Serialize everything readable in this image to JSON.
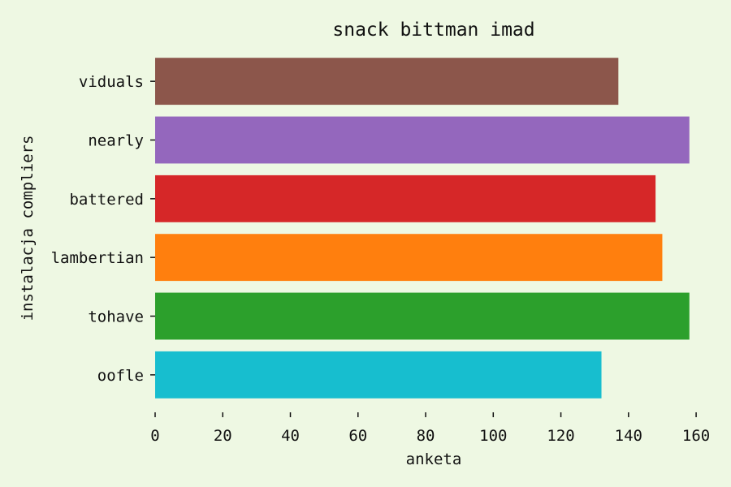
{
  "chart_data": {
    "type": "bar",
    "orientation": "horizontal",
    "title": "snack bittman imad",
    "xlabel": "anketa",
    "ylabel": "instalacja compliers",
    "categories": [
      "oofle",
      "tohave",
      "lambertian",
      "battered",
      "nearly",
      "viduals"
    ],
    "values": [
      132,
      158,
      150,
      148,
      158,
      137
    ],
    "colors": [
      "#17becf",
      "#2ca02c",
      "#ff7f0e",
      "#d62728",
      "#9467bd",
      "#8c564b"
    ],
    "xlim": [
      0,
      165
    ],
    "xticks": [
      0,
      20,
      40,
      60,
      80,
      100,
      120,
      140,
      160
    ],
    "grid": false,
    "legend": "none"
  },
  "colors": {
    "background": "#eef8e3",
    "text": "#111111"
  }
}
